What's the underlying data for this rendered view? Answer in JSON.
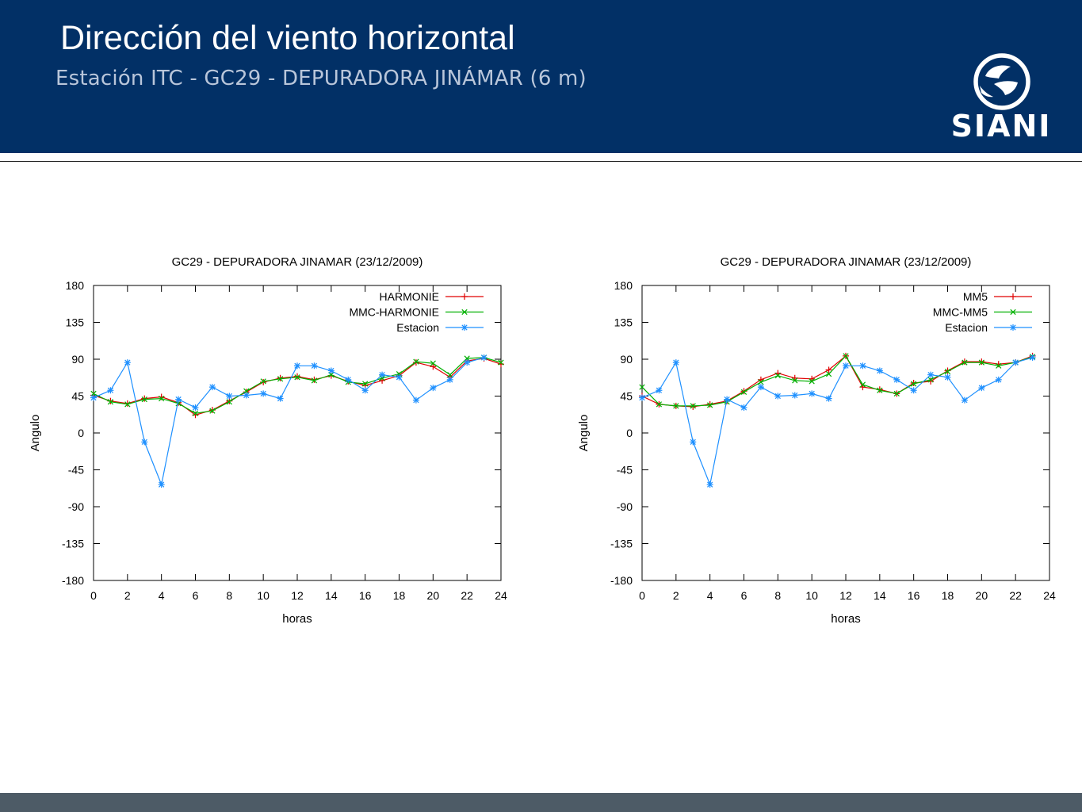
{
  "header": {
    "title": "Dirección del viento horizontal",
    "subtitle": "Estación ITC - GC29 - DEPURADORA JINÁMAR (6 m)",
    "logo_text": "SIANI"
  },
  "colors": {
    "header_bg": "#023066",
    "footer_bg": "#4d5b66",
    "series_red": "#e00000",
    "series_green": "#00b000",
    "series_blue": "#1e90ff"
  },
  "chart_data": [
    {
      "type": "line",
      "title": "GC29 - DEPURADORA JINAMAR (23/12/2009)",
      "xlabel": "horas",
      "ylabel": "Angulo",
      "xlim": [
        0,
        24
      ],
      "ylim": [
        -180,
        180
      ],
      "xticks": [
        "0",
        "2",
        "4",
        "6",
        "8",
        "10",
        "12",
        "14",
        "16",
        "18",
        "20",
        "22",
        "24"
      ],
      "yticks": [
        "180",
        "135",
        "90",
        "45",
        "0",
        "-45",
        "-90",
        "-135",
        "-180"
      ],
      "grid": false,
      "legend_position": "top-right",
      "series": [
        {
          "name": "HARMONIE",
          "color": "#e00000",
          "marker": "+",
          "x": [
            0,
            1,
            2,
            3,
            4,
            5,
            6,
            7,
            8,
            9,
            10,
            11,
            12,
            13,
            14,
            15,
            16,
            17,
            18,
            19,
            20,
            21,
            22,
            23,
            24
          ],
          "y": [
            46,
            39,
            36,
            42,
            44,
            37,
            22,
            28,
            39,
            50,
            62,
            67,
            69,
            65,
            70,
            63,
            58,
            64,
            70,
            86,
            81,
            68,
            88,
            91,
            84
          ]
        },
        {
          "name": "MMC-HARMONIE",
          "color": "#00b000",
          "marker": "x",
          "x": [
            0,
            1,
            2,
            3,
            4,
            5,
            6,
            7,
            8,
            9,
            10,
            11,
            12,
            13,
            14,
            15,
            16,
            17,
            18,
            19,
            20,
            21,
            22,
            23,
            24
          ],
          "y": [
            48,
            38,
            35,
            41,
            42,
            36,
            24,
            27,
            38,
            51,
            63,
            66,
            68,
            64,
            71,
            62,
            60,
            67,
            72,
            87,
            85,
            71,
            91,
            92,
            86
          ]
        },
        {
          "name": "Estacion",
          "color": "#1e90ff",
          "marker": "*",
          "x": [
            0,
            1,
            2,
            3,
            4,
            5,
            6,
            7,
            8,
            9,
            10,
            11,
            12,
            13,
            14,
            15,
            16,
            17,
            18,
            19,
            20,
            21,
            22,
            23
          ],
          "y": [
            43,
            52,
            86,
            -11,
            -63,
            41,
            31,
            56,
            45,
            46,
            48,
            42,
            82,
            82,
            76,
            65,
            52,
            71,
            68,
            40,
            55,
            65,
            86,
            92
          ]
        }
      ]
    },
    {
      "type": "line",
      "title": "GC29 - DEPURADORA JINAMAR (23/12/2009)",
      "xlabel": "horas",
      "ylabel": "Angulo",
      "xlim": [
        0,
        24
      ],
      "ylim": [
        -180,
        180
      ],
      "xticks": [
        "0",
        "2",
        "4",
        "6",
        "8",
        "10",
        "12",
        "14",
        "16",
        "18",
        "20",
        "22",
        "24"
      ],
      "yticks": [
        "180",
        "135",
        "90",
        "45",
        "0",
        "-45",
        "-90",
        "-135",
        "-180"
      ],
      "grid": false,
      "legend_position": "top-right",
      "series": [
        {
          "name": "MM5",
          "color": "#e00000",
          "marker": "+",
          "x": [
            0,
            1,
            2,
            3,
            4,
            5,
            6,
            7,
            8,
            9,
            10,
            11,
            12,
            13,
            14,
            15,
            16,
            17,
            18,
            19,
            20,
            21,
            22,
            23
          ],
          "y": [
            45,
            35,
            33,
            32,
            35,
            39,
            51,
            65,
            73,
            67,
            66,
            77,
            94,
            56,
            53,
            48,
            61,
            63,
            76,
            87,
            87,
            84,
            86,
            94
          ]
        },
        {
          "name": "MMC-MM5",
          "color": "#00b000",
          "marker": "x",
          "x": [
            0,
            1,
            2,
            3,
            4,
            5,
            6,
            7,
            8,
            9,
            10,
            11,
            12,
            13,
            14,
            15,
            16,
            17,
            18,
            19,
            20,
            21,
            22,
            23
          ],
          "y": [
            56,
            35,
            33,
            33,
            34,
            38,
            50,
            62,
            70,
            64,
            63,
            72,
            94,
            59,
            52,
            48,
            60,
            65,
            75,
            86,
            86,
            82,
            86,
            93
          ]
        },
        {
          "name": "Estacion",
          "color": "#1e90ff",
          "marker": "*",
          "x": [
            0,
            1,
            2,
            3,
            4,
            5,
            6,
            7,
            8,
            9,
            10,
            11,
            12,
            13,
            14,
            15,
            16,
            17,
            18,
            19,
            20,
            21,
            22,
            23
          ],
          "y": [
            43,
            52,
            86,
            -11,
            -63,
            41,
            31,
            56,
            45,
            46,
            48,
            42,
            82,
            82,
            76,
            65,
            52,
            71,
            68,
            40,
            55,
            65,
            86,
            92
          ]
        }
      ]
    }
  ]
}
